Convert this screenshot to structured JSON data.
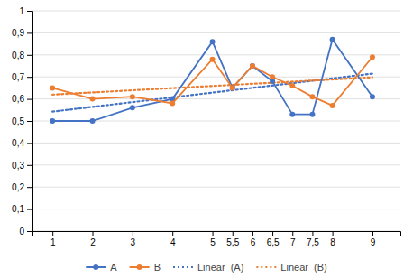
{
  "chart_data": {
    "type": "line",
    "x": [
      1,
      2,
      3,
      4,
      5,
      5.5,
      6,
      6.5,
      7,
      7.5,
      8,
      9
    ],
    "series": [
      {
        "name": "A",
        "color": "#4472C4",
        "marker": "circle",
        "line_style": "solid",
        "values": [
          0.5,
          0.5,
          0.56,
          0.6,
          0.86,
          0.65,
          0.75,
          0.68,
          0.53,
          0.53,
          0.87,
          0.61
        ]
      },
      {
        "name": "B",
        "color": "#ED7D31",
        "marker": "circle",
        "line_style": "solid",
        "values": [
          0.65,
          0.6,
          0.61,
          0.58,
          0.78,
          0.65,
          0.75,
          0.7,
          0.66,
          0.61,
          0.57,
          0.79
        ]
      },
      {
        "name": "Linear  (A)",
        "color": "#4472C4",
        "marker": "none",
        "line_style": "dotted",
        "x": [
          1,
          9
        ],
        "values": [
          0.5424,
          0.7148
        ]
      },
      {
        "name": "Linear  (B)",
        "color": "#ED7D31",
        "marker": "none",
        "line_style": "dotted",
        "x": [
          1,
          9
        ],
        "values": [
          0.6195,
          0.6981
        ]
      }
    ],
    "xlim": [
      0.5,
      9.7
    ],
    "xticks": [
      1,
      2,
      3,
      4,
      5,
      {
        "value": 5.5,
        "label": "5,5"
      },
      6,
      {
        "value": 6.5,
        "label": "6,5"
      },
      7,
      {
        "value": 7.5,
        "label": "7,5"
      },
      8,
      9
    ],
    "ylim": [
      0,
      1.0
    ],
    "yticks": [
      0,
      {
        "value": 0.1,
        "label": "0,1"
      },
      {
        "value": 0.2,
        "label": "0,2"
      },
      {
        "value": 0.3,
        "label": "0,3"
      },
      {
        "value": 0.4,
        "label": "0,4"
      },
      {
        "value": 0.5,
        "label": "0,5"
      },
      {
        "value": 0.6,
        "label": "0,6"
      },
      {
        "value": 0.7,
        "label": "0,7"
      },
      {
        "value": 0.8,
        "label": "0,8"
      },
      {
        "value": 0.9,
        "label": "0,9"
      },
      1
    ],
    "grid": true,
    "legend": "bottom"
  }
}
